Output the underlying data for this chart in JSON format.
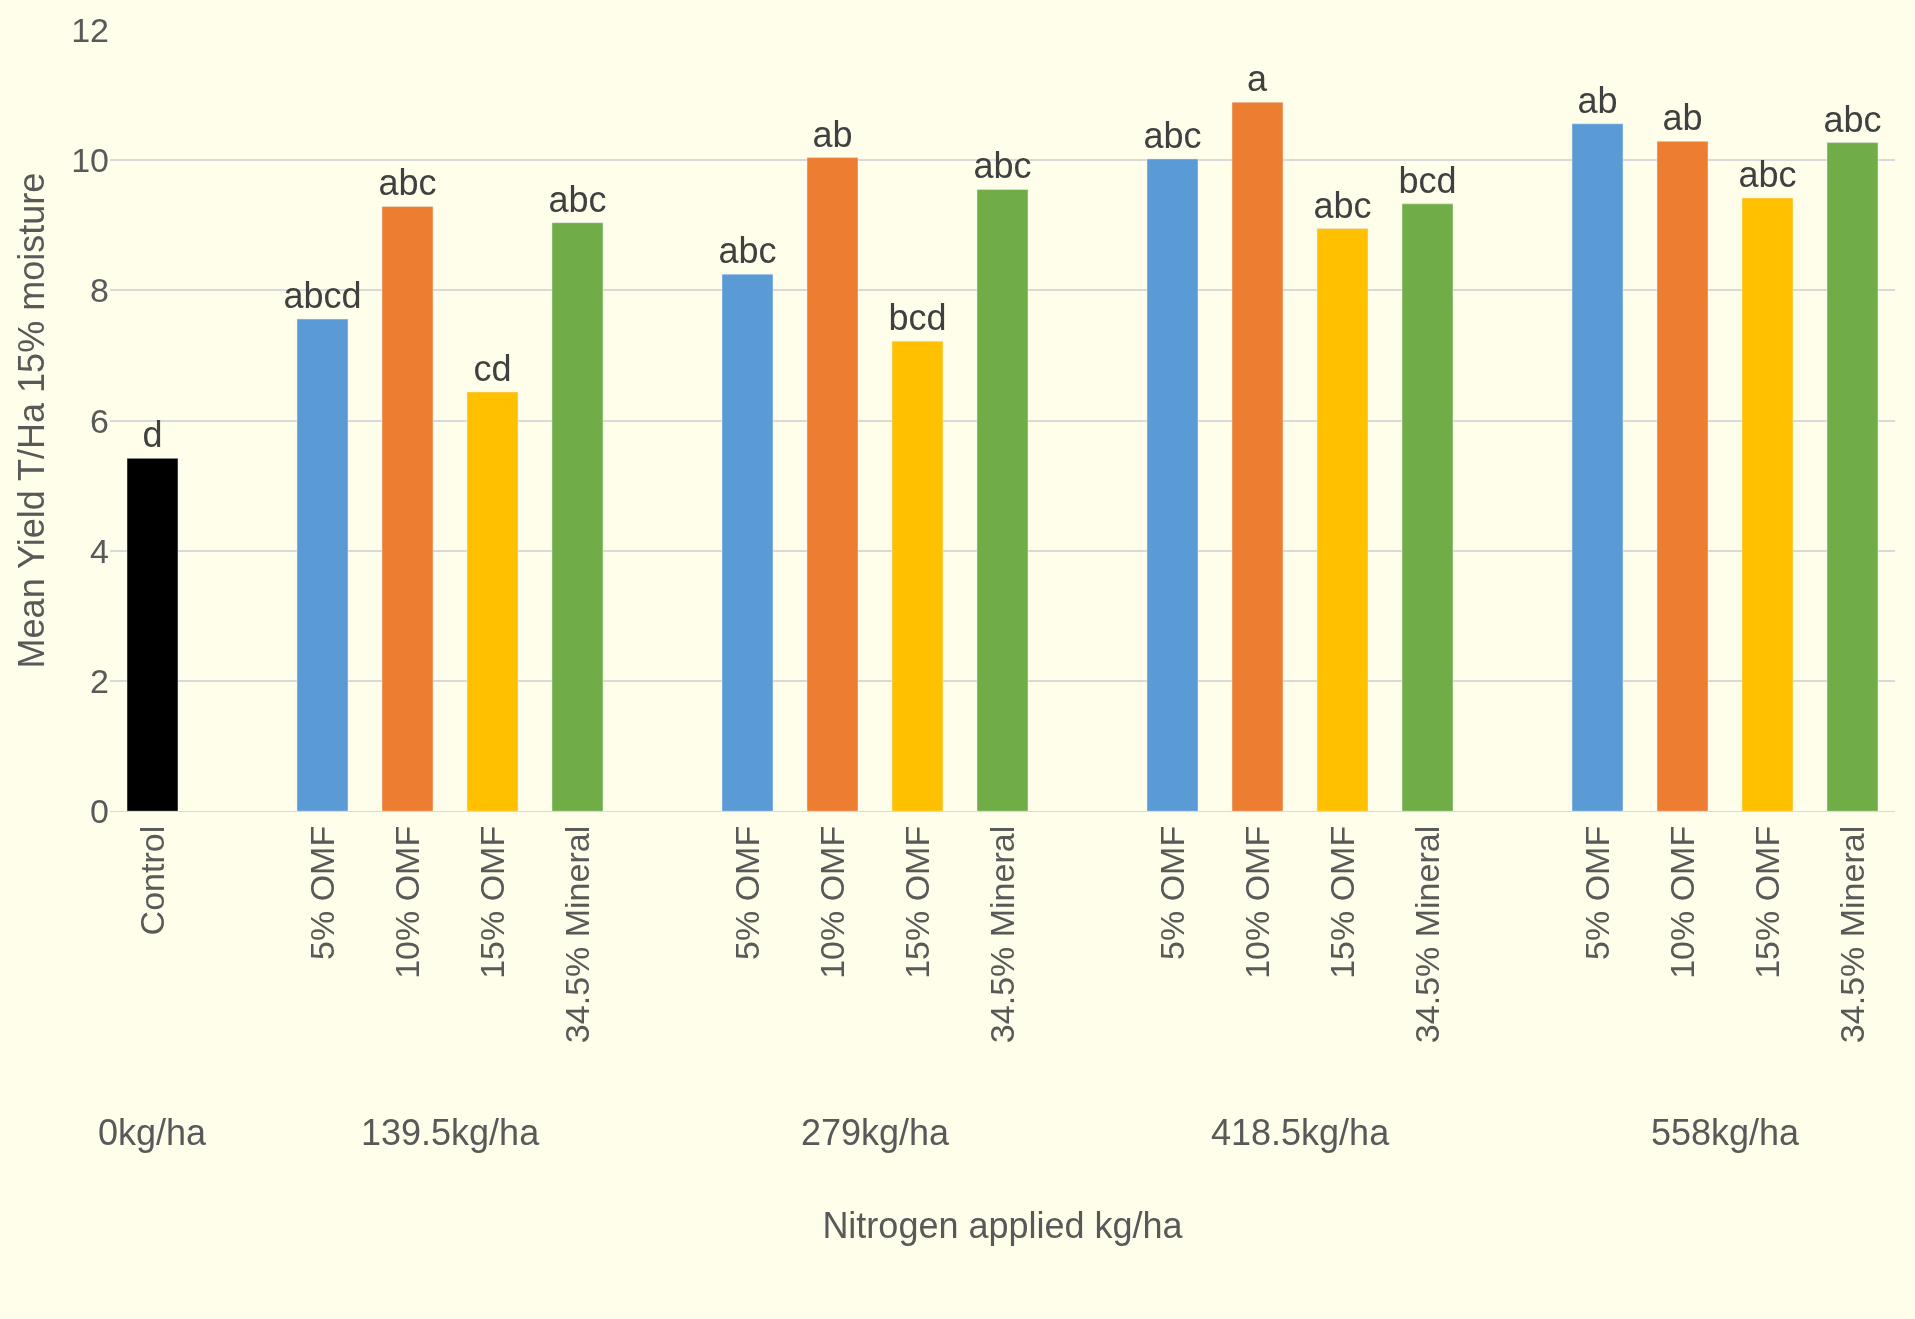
{
  "chart_data": {
    "type": "bar",
    "xlabel": "Nitrogen applied kg/ha",
    "ylabel": "Mean Yield T/Ha 15% moisture",
    "categories": [
      "Control",
      null,
      "5% OMF",
      "10% OMF",
      "15% OMF",
      "34.5% Mineral",
      null,
      "5% OMF",
      "10% OMF",
      "15% OMF",
      "34.5% Mineral",
      null,
      "5% OMF",
      "10% OMF",
      "15% OMF",
      "34.5% Mineral",
      null,
      "5% OMF",
      "10% OMF",
      "15% OMF",
      "34.5% Mineral"
    ],
    "values": [
      5.42,
      null,
      7.56,
      9.29,
      6.44,
      9.04,
      null,
      8.25,
      10.04,
      7.22,
      9.55,
      null,
      10.02,
      10.89,
      8.95,
      9.33,
      null,
      10.56,
      10.29,
      9.42,
      10.27
    ],
    "colors": [
      "#000000",
      null,
      "#5b9bd5",
      "#ed7d31",
      "#ffc000",
      "#70ad47",
      null,
      "#5b9bd5",
      "#ed7d31",
      "#ffc000",
      "#70ad47",
      null,
      "#5b9bd5",
      "#ed7d31",
      "#ffc000",
      "#70ad47",
      null,
      "#5b9bd5",
      "#ed7d31",
      "#ffc000",
      "#70ad47"
    ],
    "value_labels": [
      "d",
      null,
      "abcd",
      "abc",
      "cd",
      "abc",
      null,
      "abc",
      "ab",
      "bcd",
      "abc",
      null,
      "abc",
      "a",
      "abc",
      "bcd",
      null,
      "ab",
      "ab",
      "abc",
      "abc"
    ],
    "annotations": [
      "0kg/ha",
      "139.5kg/ha",
      "279kg/ha",
      "418.5kg/ha",
      "558kg/ha"
    ],
    "ylim": [
      0,
      12
    ],
    "yticks": [
      0,
      2,
      4,
      6,
      8,
      10,
      12
    ],
    "grid": "y",
    "legend": false
  }
}
